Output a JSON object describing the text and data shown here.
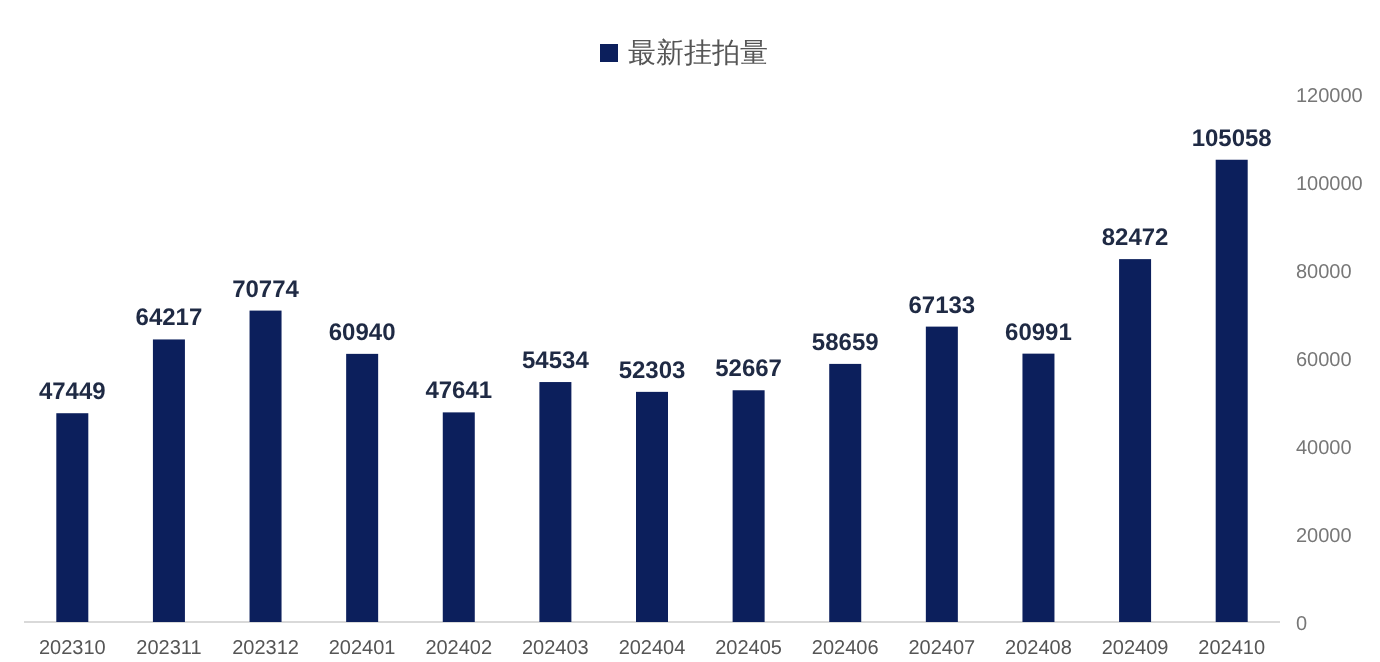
{
  "chart_data": {
    "type": "bar",
    "categories": [
      "202310",
      "202311",
      "202312",
      "202401",
      "202402",
      "202403",
      "202404",
      "202405",
      "202406",
      "202407",
      "202408",
      "202409",
      "202410"
    ],
    "series": [
      {
        "name": "最新挂拍量",
        "color": "#0c1f5c",
        "values": [
          47449,
          64217,
          70774,
          60940,
          47641,
          54534,
          52303,
          52667,
          58659,
          67133,
          60991,
          82472,
          105058
        ]
      }
    ],
    "ylim": [
      0,
      120000
    ],
    "yticks": [
      0,
      20000,
      40000,
      60000,
      80000,
      100000,
      120000
    ],
    "data_labels": true,
    "legend": "top",
    "grid": false
  }
}
